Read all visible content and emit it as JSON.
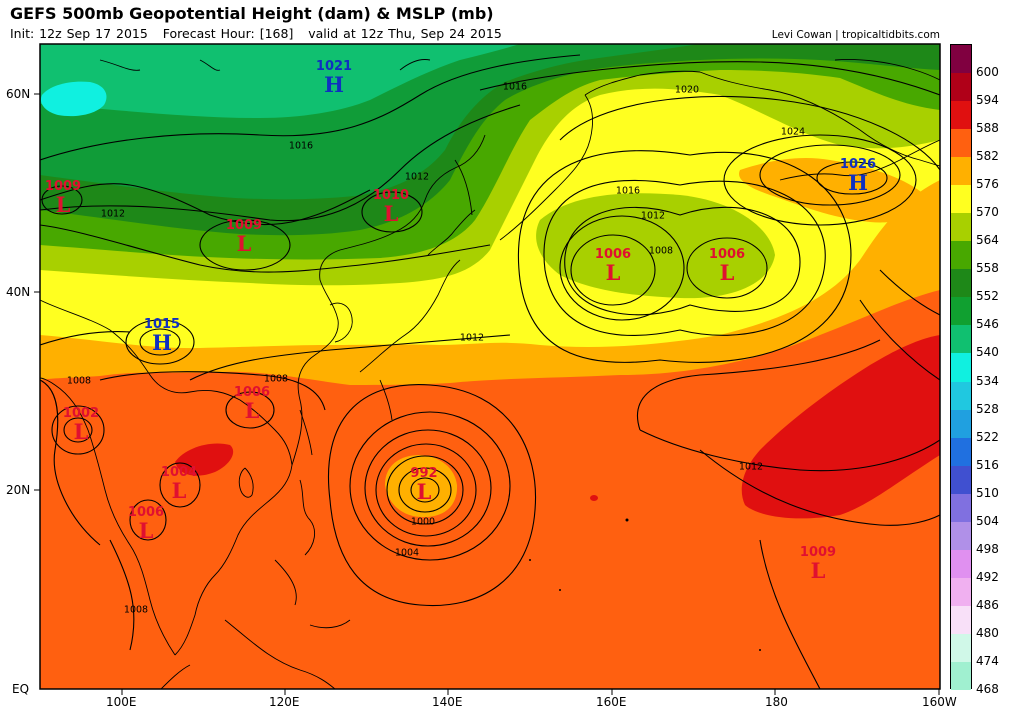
{
  "header": {
    "title": "GEFS 500mb Geopotential Height (dam) & MSLP (mb)",
    "init_label": "Init: 12z Sep 17 2015",
    "forecast_hour_label": "Forecast Hour: [168]",
    "valid_label": "valid at 12z Thu, Sep 24 2015",
    "credit": "Levi Cowan | tropicaltidbits.com"
  },
  "axes": {
    "lat_ticks": [
      "60N",
      "40N",
      "20N",
      "EQ"
    ],
    "lon_ticks": [
      "100E",
      "120E",
      "140E",
      "160E",
      "180",
      "160W"
    ]
  },
  "colorbar": {
    "levels": [
      "600",
      "594",
      "588",
      "582",
      "576",
      "570",
      "564",
      "558",
      "552",
      "546",
      "540",
      "534",
      "528",
      "522",
      "516",
      "510",
      "504",
      "498",
      "492",
      "486",
      "480",
      "474",
      "468"
    ],
    "colors": [
      "#800040",
      "#b00018",
      "#e01010",
      "#ff6010",
      "#ffb000",
      "#ffff20",
      "#a8d000",
      "#48a800",
      "#1e8818",
      "#10a030",
      "#10c070",
      "#10f0e0",
      "#20c8e0",
      "#20a0e0",
      "#2070e0",
      "#4050d0",
      "#8070e0",
      "#b090e8",
      "#e090f0",
      "#f0b0f0",
      "#f8e0f8",
      "#d0f8e8",
      "#a0f0d0"
    ]
  },
  "colors": {
    "low_marker": "#e01030",
    "high_marker": "#1030c0",
    "contour": "#000000"
  },
  "pressure_systems": [
    {
      "type": "H",
      "value": "1021"
    },
    {
      "type": "L",
      "value": "1009"
    },
    {
      "type": "L",
      "value": "1010"
    },
    {
      "type": "L",
      "value": "1009"
    },
    {
      "type": "H",
      "value": "1015"
    },
    {
      "type": "L",
      "value": "1006"
    },
    {
      "type": "L",
      "value": "1006"
    },
    {
      "type": "H",
      "value": "1026"
    },
    {
      "type": "L",
      "value": "1002"
    },
    {
      "type": "L",
      "value": "1006"
    },
    {
      "type": "L",
      "value": "1004"
    },
    {
      "type": "L",
      "value": "1006"
    },
    {
      "type": "L",
      "value": "992"
    },
    {
      "type": "L",
      "value": "1009"
    }
  ],
  "contour_labels": [
    "1016",
    "1020",
    "1024",
    "1016",
    "1012",
    "1016",
    "1012",
    "1012",
    "1008",
    "1012",
    "1008",
    "1008",
    "1012",
    "1000",
    "1004",
    "1008",
    "1012"
  ]
}
